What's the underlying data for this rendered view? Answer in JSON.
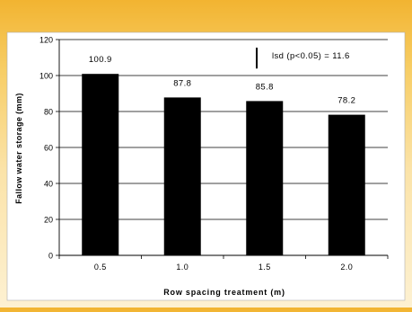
{
  "chart_data": {
    "type": "bar",
    "categories": [
      "0.5",
      "1.0",
      "1.5",
      "2.0"
    ],
    "values": [
      100.9,
      87.8,
      85.8,
      78.2
    ],
    "data_labels": [
      "100.9",
      "87.8",
      "85.8",
      "78.2"
    ],
    "xlabel": "Row spacing treatment (m)",
    "ylabel": "Fallow water storage (mm)",
    "ylim": [
      0,
      120
    ],
    "yticks": [
      0,
      20,
      40,
      60,
      80,
      100,
      120
    ],
    "grid": true,
    "bar_color": "#000000",
    "annotation": "lsd (p<0.05) = 11.6",
    "lsd": 11.6
  }
}
